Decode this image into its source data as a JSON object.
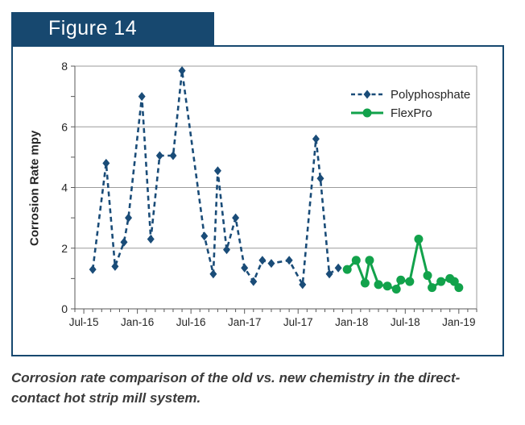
{
  "header": {
    "title": "Figure 14"
  },
  "caption": {
    "line1": "Corrosion rate comparison of the old vs. new chemistry in the direct-",
    "line2": "contact hot strip mill system."
  },
  "colors": {
    "figure_accent_navy": "#17486f",
    "polyphosphate_blue": "#1a4c78",
    "flexpro_green": "#12a24b",
    "gridline_gray": "#9b9b9b",
    "axis_gray": "#595959",
    "text_dark": "#262626"
  },
  "chart_data": {
    "type": "line",
    "title": "",
    "xlabel": "",
    "ylabel": "Corrosion Rate mpy",
    "ylim": [
      0,
      8
    ],
    "y_major_ticks": [
      0,
      2,
      4,
      6,
      8
    ],
    "y_minor_step": 1,
    "grid": "horizontal-only",
    "legend_position": "top-right-inside",
    "x_unit": "months since Jul-2015",
    "xlim": [
      -1,
      44
    ],
    "x_minor_step": 1,
    "x_ticks": [
      {
        "label": "Jul-15",
        "t": 0
      },
      {
        "label": "Jan-16",
        "t": 6
      },
      {
        "label": "Jul-16",
        "t": 12
      },
      {
        "label": "Jan-17",
        "t": 18
      },
      {
        "label": "Jul-17",
        "t": 24
      },
      {
        "label": "Jan-18",
        "t": 30
      },
      {
        "label": "Jul-18",
        "t": 36
      },
      {
        "label": "Jan-19",
        "t": 42
      }
    ],
    "series": [
      {
        "name": "Polyphosphate",
        "color": "#1a4c78",
        "line_style": "dashed",
        "marker": "diamond",
        "points": [
          [
            1,
            1.3
          ],
          [
            2.5,
            4.8
          ],
          [
            3.5,
            1.4
          ],
          [
            4.5,
            2.2
          ],
          [
            5,
            3.0
          ],
          [
            6.5,
            7.0
          ],
          [
            7.5,
            2.3
          ],
          [
            8.5,
            5.05
          ],
          [
            10,
            5.05
          ],
          [
            11,
            7.85
          ],
          [
            13.5,
            2.4
          ],
          [
            14.5,
            1.15
          ],
          [
            15,
            4.55
          ],
          [
            16,
            1.95
          ],
          [
            17,
            3.0
          ],
          [
            18,
            1.35
          ],
          [
            19,
            0.9
          ],
          [
            20,
            1.6
          ],
          [
            21,
            1.5
          ],
          [
            23,
            1.6
          ],
          [
            24.5,
            0.8
          ],
          [
            26,
            5.6
          ],
          [
            26.5,
            4.3
          ],
          [
            27.5,
            1.15
          ],
          [
            28.5,
            1.35
          ]
        ]
      },
      {
        "name": "FlexPro",
        "color": "#12a24b",
        "line_style": "solid",
        "marker": "circle",
        "points": [
          [
            29.5,
            1.3
          ],
          [
            30.5,
            1.6
          ],
          [
            31.5,
            0.85
          ],
          [
            32,
            1.6
          ],
          [
            33,
            0.8
          ],
          [
            34,
            0.75
          ],
          [
            35,
            0.65
          ],
          [
            35.5,
            0.95
          ],
          [
            36.5,
            0.9
          ],
          [
            37.5,
            2.3
          ],
          [
            38.5,
            1.1
          ],
          [
            39,
            0.7
          ],
          [
            40,
            0.9
          ],
          [
            41,
            1.0
          ],
          [
            41.5,
            0.9
          ],
          [
            42,
            0.7
          ]
        ]
      }
    ]
  }
}
